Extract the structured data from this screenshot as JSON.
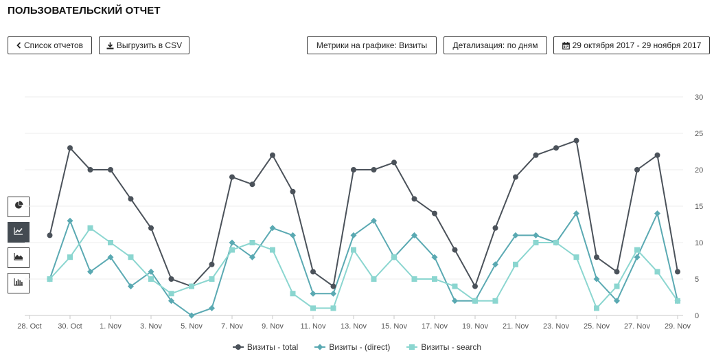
{
  "header": {
    "title": "ПОЛЬЗОВАТЕЛЬСКИЙ ОТЧЕТ"
  },
  "toolbar": {
    "back_label": "Список отчетов",
    "export_label": "Выгрузить в CSV",
    "metrics_label": "Метрики на графике: Визиты",
    "detail_label": "Детализация: по дням",
    "date_range_label": "29 октября 2017 - 29 ноября 2017"
  },
  "colors": {
    "total": "#4b525a",
    "direct": "#5aa9b2",
    "search": "#8bd6d0",
    "grid": "#eeeeee",
    "side_active": "#444b52"
  },
  "side_icons": [
    "pie-chart-icon",
    "line-chart-icon",
    "area-chart-icon",
    "bar-chart-icon"
  ],
  "chart_data": {
    "type": "line",
    "x": [
      "28. Oct",
      "29. Oct",
      "30. Oct",
      "31. Oct",
      "1. Nov",
      "2. Nov",
      "3. Nov",
      "4. Nov",
      "5. Nov",
      "6. Nov",
      "7. Nov",
      "8. Nov",
      "9. Nov",
      "10. Nov",
      "11. Nov",
      "12. Nov",
      "13. Nov",
      "14. Nov",
      "15. Nov",
      "16. Nov",
      "17. Nov",
      "18. Nov",
      "19. Nov",
      "20. Nov",
      "21. Nov",
      "22. Nov",
      "23. Nov",
      "24. Nov",
      "25. Nov",
      "26. Nov",
      "27. Nov",
      "28. Nov",
      "29. Nov"
    ],
    "tick_labels": [
      "28. Oct",
      "30. Oct",
      "1. Nov",
      "3. Nov",
      "5. Nov",
      "7. Nov",
      "9. Nov",
      "11. Nov",
      "13. Nov",
      "15. Nov",
      "17. Nov",
      "19. Nov",
      "21. Nov",
      "23. Nov",
      "25. Nov",
      "27. Nov",
      "29. Nov"
    ],
    "y_ticks": [
      0,
      5,
      10,
      15,
      20,
      25,
      30
    ],
    "ylim": [
      0,
      30
    ],
    "grid": true,
    "legend_position": "bottom",
    "series": [
      {
        "name": "Визиты - total",
        "marker": "circle",
        "values": [
          null,
          11,
          23,
          20,
          20,
          16,
          12,
          5,
          4,
          7,
          19,
          18,
          22,
          17,
          6,
          4,
          20,
          20,
          21,
          16,
          14,
          9,
          4,
          12,
          19,
          22,
          23,
          24,
          8,
          6,
          20,
          22,
          6
        ]
      },
      {
        "name": "Визиты - (direct)",
        "marker": "diamond",
        "values": [
          null,
          5,
          13,
          6,
          8,
          4,
          6,
          2,
          0,
          1,
          10,
          8,
          12,
          11,
          3,
          3,
          11,
          13,
          8,
          11,
          8,
          2,
          2,
          7,
          11,
          11,
          10,
          14,
          5,
          2,
          8,
          14,
          2
        ]
      },
      {
        "name": "Визиты - search",
        "marker": "square",
        "values": [
          null,
          5,
          8,
          12,
          10,
          8,
          5,
          3,
          4,
          5,
          9,
          10,
          9,
          3,
          1,
          1,
          9,
          5,
          8,
          5,
          5,
          4,
          2,
          2,
          7,
          10,
          10,
          8,
          1,
          4,
          9,
          6,
          2
        ]
      }
    ]
  }
}
